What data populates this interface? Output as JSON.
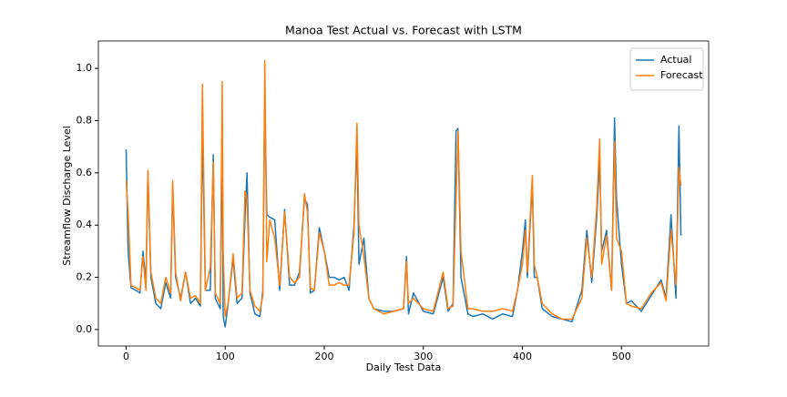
{
  "chart_data": {
    "type": "line",
    "title": "Manoa Test Actual vs. Forecast with LSTM",
    "x_label": "Daily Test Data",
    "y_label": "Streamflow Discharge Level",
    "x": [
      0,
      2,
      5,
      10,
      14,
      17,
      20,
      22,
      25,
      30,
      35,
      40,
      45,
      47,
      50,
      55,
      60,
      65,
      70,
      75,
      77,
      80,
      85,
      88,
      90,
      95,
      97,
      98,
      100,
      103,
      108,
      112,
      117,
      120,
      122,
      125,
      130,
      135,
      138,
      140,
      142,
      145,
      150,
      155,
      160,
      165,
      170,
      175,
      180,
      183,
      186,
      190,
      195,
      200,
      205,
      210,
      215,
      220,
      225,
      230,
      233,
      235,
      240,
      245,
      250,
      260,
      270,
      280,
      283,
      285,
      290,
      300,
      310,
      320,
      325,
      330,
      333,
      335,
      338,
      345,
      350,
      360,
      370,
      380,
      390,
      395,
      400,
      403,
      405,
      410,
      412,
      415,
      420,
      430,
      440,
      450,
      460,
      465,
      470,
      475,
      478,
      480,
      485,
      490,
      493,
      495,
      500,
      505,
      510,
      520,
      530,
      540,
      545,
      550,
      555,
      558,
      560
    ],
    "series": [
      {
        "name": "Actual",
        "color": "#1f77b4",
        "values": [
          0.69,
          0.3,
          0.16,
          0.15,
          0.14,
          0.3,
          0.18,
          0.6,
          0.2,
          0.1,
          0.08,
          0.18,
          0.12,
          0.55,
          0.2,
          0.12,
          0.22,
          0.1,
          0.12,
          0.09,
          0.77,
          0.15,
          0.15,
          0.67,
          0.12,
          0.08,
          0.73,
          0.05,
          0.01,
          0.1,
          0.27,
          0.1,
          0.12,
          0.43,
          0.6,
          0.14,
          0.06,
          0.05,
          0.15,
          0.9,
          0.44,
          0.43,
          0.42,
          0.15,
          0.46,
          0.17,
          0.17,
          0.22,
          0.5,
          0.48,
          0.14,
          0.15,
          0.39,
          0.3,
          0.2,
          0.2,
          0.19,
          0.2,
          0.15,
          0.4,
          0.72,
          0.25,
          0.35,
          0.12,
          0.08,
          0.07,
          0.07,
          0.08,
          0.28,
          0.06,
          0.14,
          0.07,
          0.06,
          0.2,
          0.07,
          0.1,
          0.76,
          0.77,
          0.2,
          0.06,
          0.05,
          0.06,
          0.04,
          0.06,
          0.05,
          0.15,
          0.3,
          0.42,
          0.2,
          0.56,
          0.2,
          0.2,
          0.08,
          0.05,
          0.04,
          0.03,
          0.15,
          0.38,
          0.18,
          0.43,
          0.65,
          0.3,
          0.38,
          0.15,
          0.81,
          0.5,
          0.25,
          0.1,
          0.11,
          0.07,
          0.13,
          0.19,
          0.12,
          0.44,
          0.12,
          0.78,
          0.36
        ]
      },
      {
        "name": "Forecast",
        "color": "#ff7f0e",
        "values": [
          0.57,
          0.45,
          0.17,
          0.16,
          0.15,
          0.28,
          0.15,
          0.61,
          0.22,
          0.12,
          0.1,
          0.2,
          0.14,
          0.57,
          0.22,
          0.11,
          0.22,
          0.12,
          0.13,
          0.1,
          0.94,
          0.15,
          0.24,
          0.64,
          0.14,
          0.1,
          0.95,
          0.3,
          0.05,
          0.1,
          0.29,
          0.12,
          0.14,
          0.53,
          0.5,
          0.15,
          0.09,
          0.07,
          0.13,
          1.03,
          0.26,
          0.42,
          0.35,
          0.17,
          0.45,
          0.2,
          0.18,
          0.2,
          0.52,
          0.45,
          0.16,
          0.15,
          0.37,
          0.3,
          0.17,
          0.17,
          0.18,
          0.17,
          0.17,
          0.37,
          0.79,
          0.4,
          0.28,
          0.12,
          0.08,
          0.06,
          0.07,
          0.08,
          0.26,
          0.1,
          0.12,
          0.08,
          0.07,
          0.22,
          0.08,
          0.09,
          0.5,
          0.76,
          0.3,
          0.08,
          0.08,
          0.07,
          0.07,
          0.08,
          0.07,
          0.15,
          0.25,
          0.38,
          0.22,
          0.59,
          0.25,
          0.2,
          0.1,
          0.06,
          0.04,
          0.04,
          0.12,
          0.35,
          0.2,
          0.47,
          0.73,
          0.25,
          0.36,
          0.15,
          0.72,
          0.35,
          0.3,
          0.1,
          0.09,
          0.08,
          0.14,
          0.18,
          0.11,
          0.38,
          0.17,
          0.62,
          0.55
        ]
      }
    ],
    "xlim": [
      -28,
      588
    ],
    "ylim": [
      -0.063,
      1.105
    ],
    "xticks": [
      0,
      100,
      200,
      300,
      400,
      500
    ],
    "yticks": [
      {
        "value": 0,
        "label": "0.0"
      },
      0.2,
      0.4,
      0.6,
      0.8,
      {
        "value": 1,
        "label": "1.0"
      }
    ],
    "grid": false,
    "legend": "upper right"
  }
}
